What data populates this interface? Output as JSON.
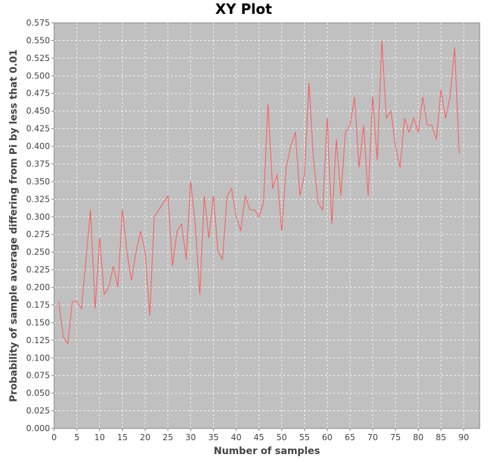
{
  "chart_data": {
    "type": "line",
    "title": "XY Plot",
    "xlabel": "Number of samples",
    "ylabel": "Probability of sample average differing from Pi by less that 0.01",
    "xlim": [
      0,
      93.5
    ],
    "ylim": [
      0,
      0.575
    ],
    "x_ticks": [
      "0",
      "5",
      "10",
      "15",
      "20",
      "25",
      "30",
      "35",
      "40",
      "45",
      "50",
      "55",
      "60",
      "65",
      "70",
      "75",
      "80",
      "85",
      "90"
    ],
    "y_ticks": [
      "0.000",
      "0.025",
      "0.050",
      "0.075",
      "0.100",
      "0.125",
      "0.150",
      "0.175",
      "0.200",
      "0.225",
      "0.250",
      "0.275",
      "0.300",
      "0.325",
      "0.350",
      "0.375",
      "0.400",
      "0.425",
      "0.450",
      "0.475",
      "0.500",
      "0.525",
      "0.550",
      "0.575"
    ],
    "grid": true,
    "legend": "none",
    "series": [
      {
        "color": "#ff5555",
        "x": [
          1,
          2,
          3,
          4,
          5,
          6,
          7,
          8,
          9,
          10,
          11,
          12,
          13,
          14,
          15,
          16,
          17,
          18,
          19,
          20,
          21,
          22,
          23,
          24,
          25,
          26,
          27,
          28,
          29,
          30,
          31,
          32,
          33,
          34,
          35,
          36,
          37,
          38,
          39,
          40,
          41,
          42,
          43,
          44,
          45,
          46,
          47,
          48,
          49,
          50,
          51,
          52,
          53,
          54,
          55,
          56,
          57,
          58,
          59,
          60,
          61,
          62,
          63,
          64,
          65,
          66,
          67,
          68,
          69,
          70,
          71,
          72,
          73,
          74,
          75,
          76,
          77,
          78,
          79,
          80,
          81,
          82,
          83,
          84,
          85,
          86,
          87,
          88,
          89
        ],
        "y": [
          0.18,
          0.13,
          0.12,
          0.18,
          0.18,
          0.17,
          0.24,
          0.31,
          0.17,
          0.27,
          0.19,
          0.2,
          0.23,
          0.2,
          0.31,
          0.25,
          0.21,
          0.25,
          0.28,
          0.25,
          0.16,
          0.3,
          0.31,
          0.32,
          0.33,
          0.23,
          0.28,
          0.29,
          0.24,
          0.35,
          0.29,
          0.19,
          0.33,
          0.27,
          0.33,
          0.25,
          0.24,
          0.33,
          0.34,
          0.3,
          0.28,
          0.33,
          0.31,
          0.31,
          0.3,
          0.32,
          0.46,
          0.34,
          0.36,
          0.28,
          0.37,
          0.4,
          0.42,
          0.33,
          0.36,
          0.49,
          0.38,
          0.32,
          0.31,
          0.44,
          0.29,
          0.41,
          0.33,
          0.42,
          0.43,
          0.47,
          0.37,
          0.43,
          0.33,
          0.47,
          0.38,
          0.55,
          0.44,
          0.45,
          0.4,
          0.37,
          0.44,
          0.42,
          0.44,
          0.42,
          0.47,
          0.43,
          0.43,
          0.41,
          0.48,
          0.44,
          0.47,
          0.54,
          0.39
        ]
      }
    ]
  },
  "colors": {
    "plot_background": "#c0c0c0",
    "grid": "#ffffff",
    "series_line": "#ff5555"
  }
}
